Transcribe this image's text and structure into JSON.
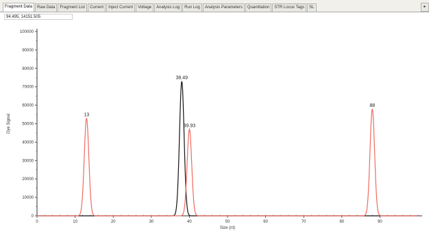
{
  "tabs": [
    {
      "label": "Fragment Data",
      "active": true
    },
    {
      "label": "Raw Data",
      "active": false
    },
    {
      "label": "Fragment List",
      "active": false
    },
    {
      "label": "Current",
      "active": false
    },
    {
      "label": "Inject Current",
      "active": false
    },
    {
      "label": "Voltage",
      "active": false
    },
    {
      "label": "Analysis Log",
      "active": false
    },
    {
      "label": "Run Log",
      "active": false
    },
    {
      "label": "Analysis Parameters",
      "active": false
    },
    {
      "label": "Quantitation",
      "active": false
    },
    {
      "label": "STR Locus Tags",
      "active": false
    },
    {
      "label": "SL",
      "active": false
    }
  ],
  "tab_scroll_icon": "chevron-right-icon",
  "cursor_readout": "94.495, 14151.505",
  "colors": {
    "black_trace": "#111111",
    "red_trace": "#ee6a5f",
    "axis": "#333333"
  },
  "chart_data": {
    "type": "line",
    "xlabel": "Size (nt)",
    "ylabel": "Dye Signal",
    "xlim": [
      0,
      100
    ],
    "ylim": [
      0,
      100000
    ],
    "xticks": [
      0,
      10,
      20,
      30,
      40,
      50,
      60,
      70,
      80,
      90
    ],
    "yticks": [
      0,
      10000,
      20000,
      30000,
      40000,
      50000,
      60000,
      70000,
      80000,
      90000,
      100000
    ],
    "grid": false,
    "series": [
      {
        "color": "#111111",
        "peaks": [
          {
            "x": 38.0,
            "y": 73000,
            "width": 0.6
          }
        ]
      },
      {
        "color": "#ee6a5f",
        "peaks": [
          {
            "x": 13.0,
            "y": 53000,
            "width": 0.6
          },
          {
            "x": 40.0,
            "y": 47000,
            "width": 0.6
          },
          {
            "x": 88.0,
            "y": 58000,
            "width": 0.6
          }
        ]
      }
    ],
    "peak_labels": [
      {
        "text": "13",
        "x": 13.0,
        "y": 53000
      },
      {
        "text": "38.49",
        "x": 38.0,
        "y": 73000
      },
      {
        "text": "39.93",
        "x": 40.0,
        "y": 47000
      },
      {
        "text": "88",
        "x": 88.0,
        "y": 58000
      }
    ]
  }
}
